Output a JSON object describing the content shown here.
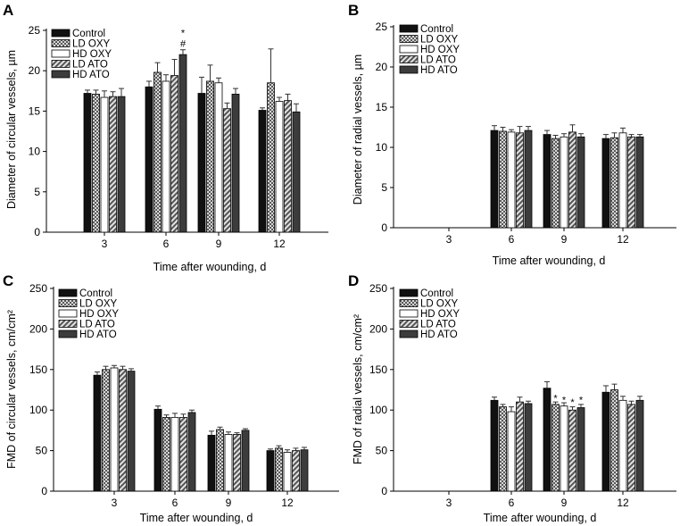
{
  "colors": {
    "Control": "#111111",
    "LD OXY": "#8a8a8a",
    "HD OXY": "#ffffff",
    "LD ATO": "#a8a8a8",
    "HD ATO": "#3c3c3c"
  },
  "chart_data": [
    {
      "panel": "A",
      "type": "bar",
      "categories": [
        "3",
        "6",
        "9",
        "12"
      ],
      "xlabel": "Time after wounding, d",
      "ylabel": "Diameter of circular vessels, µm",
      "ylim": [
        0,
        25
      ],
      "yticks": [
        0,
        5,
        10,
        15,
        20,
        25
      ],
      "legend": "top-left",
      "series": [
        {
          "name": "Control",
          "values": [
            17.2,
            18.0,
            17.2,
            15.1
          ],
          "errors": [
            0.4,
            0.7,
            2.0,
            0.3
          ]
        },
        {
          "name": "LD OXY",
          "values": [
            17.1,
            19.8,
            18.7,
            18.5
          ],
          "errors": [
            0.5,
            1.2,
            2.0,
            4.2
          ]
        },
        {
          "name": "HD OXY",
          "values": [
            16.7,
            18.7,
            18.5,
            16.2
          ],
          "errors": [
            0.8,
            0.8,
            0.6,
            0.5
          ]
        },
        {
          "name": "LD ATO",
          "values": [
            16.8,
            19.4,
            15.3,
            16.3
          ],
          "errors": [
            0.6,
            2.0,
            0.7,
            0.8
          ]
        },
        {
          "name": "HD ATO",
          "values": [
            16.8,
            22.0,
            17.1,
            14.9
          ],
          "errors": [
            1.0,
            0.6,
            0.7,
            1.0
          ]
        }
      ],
      "annotations": [
        {
          "text": "*",
          "category": "6",
          "series": "HD ATO",
          "value": 24.7
        },
        {
          "text": "#",
          "category": "6",
          "series": "HD ATO",
          "value": 23.4
        }
      ]
    },
    {
      "panel": "B",
      "type": "bar",
      "categories": [
        "3",
        "6",
        "9",
        "12"
      ],
      "xlabel": "Time after wounding, d",
      "ylabel": "Diameter of radial vessels, µm",
      "ylim": [
        0,
        25
      ],
      "yticks": [
        0,
        5,
        10,
        15,
        20,
        25
      ],
      "legend": "top-left",
      "series": [
        {
          "name": "Control",
          "values": [
            0,
            12.1,
            11.6,
            11.1
          ],
          "errors": [
            0,
            0.6,
            0.5,
            0.5
          ]
        },
        {
          "name": "LD OXY",
          "values": [
            0,
            12.0,
            11.1,
            11.2
          ],
          "errors": [
            0,
            0.5,
            0.4,
            0.6
          ]
        },
        {
          "name": "HD OXY",
          "values": [
            0,
            11.9,
            11.3,
            11.8
          ],
          "errors": [
            0,
            0.3,
            0.4,
            0.6
          ]
        },
        {
          "name": "LD ATO",
          "values": [
            0,
            11.8,
            11.9,
            11.3
          ],
          "errors": [
            0,
            0.8,
            0.9,
            0.3
          ]
        },
        {
          "name": "HD ATO",
          "values": [
            0,
            12.1,
            11.3,
            11.3
          ],
          "errors": [
            0,
            0.5,
            0.4,
            0.3
          ]
        }
      ],
      "annotations": []
    },
    {
      "panel": "C",
      "type": "bar",
      "categories": [
        "3",
        "6",
        "9",
        "12"
      ],
      "xlabel": "Time after wounding, d",
      "ylabel": "FMD of circular vessels, cm/cm²",
      "ylim": [
        0,
        250
      ],
      "yticks": [
        0,
        50,
        100,
        150,
        200,
        250
      ],
      "legend": "top-left",
      "series": [
        {
          "name": "Control",
          "values": [
            143,
            101,
            69,
            50
          ],
          "errors": [
            4,
            4,
            5,
            2
          ]
        },
        {
          "name": "LD OXY",
          "values": [
            150,
            91,
            76,
            53
          ],
          "errors": [
            4,
            3,
            3,
            3
          ]
        },
        {
          "name": "HD OXY",
          "values": [
            152,
            91,
            70,
            48
          ],
          "errors": [
            3,
            5,
            3,
            3
          ]
        },
        {
          "name": "LD ATO",
          "values": [
            150,
            91,
            70,
            50
          ],
          "errors": [
            4,
            4,
            2,
            3
          ]
        },
        {
          "name": "HD ATO",
          "values": [
            148,
            97,
            75,
            51
          ],
          "errors": [
            3,
            3,
            2,
            3
          ]
        }
      ],
      "annotations": []
    },
    {
      "panel": "D",
      "type": "bar",
      "categories": [
        "3",
        "6",
        "9",
        "12"
      ],
      "xlabel": "Time after wounding, d",
      "ylabel": "FMD of radial vessels, cm/cm²",
      "ylim": [
        0,
        250
      ],
      "yticks": [
        0,
        50,
        100,
        150,
        200,
        250
      ],
      "legend": "top-left",
      "series": [
        {
          "name": "Control",
          "values": [
            0,
            112,
            127,
            122
          ],
          "errors": [
            0,
            4,
            8,
            8
          ]
        },
        {
          "name": "LD OXY",
          "values": [
            0,
            104,
            107,
            125
          ],
          "errors": [
            0,
            3,
            3,
            7
          ]
        },
        {
          "name": "HD OXY",
          "values": [
            0,
            98,
            105,
            112
          ],
          "errors": [
            0,
            6,
            4,
            5
          ]
        },
        {
          "name": "LD ATO",
          "values": [
            0,
            110,
            100,
            107
          ],
          "errors": [
            0,
            6,
            4,
            4
          ]
        },
        {
          "name": "HD ATO",
          "values": [
            0,
            108,
            103,
            112
          ],
          "errors": [
            0,
            3,
            4,
            5
          ]
        }
      ],
      "annotations": [
        {
          "text": "*",
          "category": "9",
          "series": "LD OXY",
          "value": 115
        },
        {
          "text": "*",
          "category": "9",
          "series": "HD OXY",
          "value": 113
        },
        {
          "text": "*",
          "category": "9",
          "series": "LD ATO",
          "value": 110
        },
        {
          "text": "*",
          "category": "9",
          "series": "HD ATO",
          "value": 113
        }
      ]
    }
  ]
}
